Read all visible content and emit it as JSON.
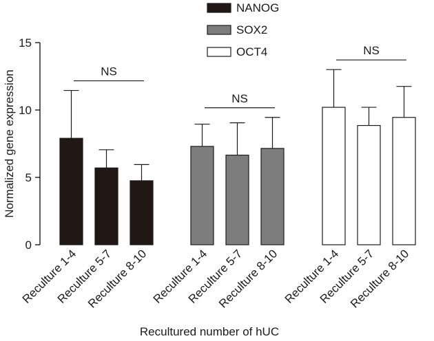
{
  "chart_data": {
    "type": "bar",
    "title": "",
    "xlabel": "Recultured number of hUC",
    "ylabel": "Normalized gene expression",
    "ylim": [
      0,
      15
    ],
    "yticks": [
      "0",
      "5",
      "10",
      "15"
    ],
    "grid": false,
    "legend_position": "top-center",
    "groups": [
      {
        "name": "NANOG",
        "color": "#211714",
        "categories": [
          "Reculture 1-4",
          "Reculture 5-7",
          "Reculture 8-10"
        ],
        "values": [
          7.9,
          5.7,
          4.75
        ],
        "errors": [
          3.55,
          1.35,
          1.2
        ],
        "annotation": "NS"
      },
      {
        "name": "SOX2",
        "color": "#7d7d7d",
        "categories": [
          "Reculture 1-4",
          "Reculture 5-7",
          "Reculture 8-10"
        ],
        "values": [
          7.3,
          6.65,
          7.15
        ],
        "errors": [
          1.65,
          2.4,
          2.3
        ],
        "annotation": "NS"
      },
      {
        "name": "OCT4",
        "color": "#ffffff",
        "categories": [
          "Reculture 1-4",
          "Reculture 5-7",
          "Reculture 8-10"
        ],
        "values": [
          10.2,
          8.85,
          9.45
        ],
        "errors": [
          2.8,
          1.35,
          2.3
        ],
        "annotation": "NS"
      }
    ]
  }
}
